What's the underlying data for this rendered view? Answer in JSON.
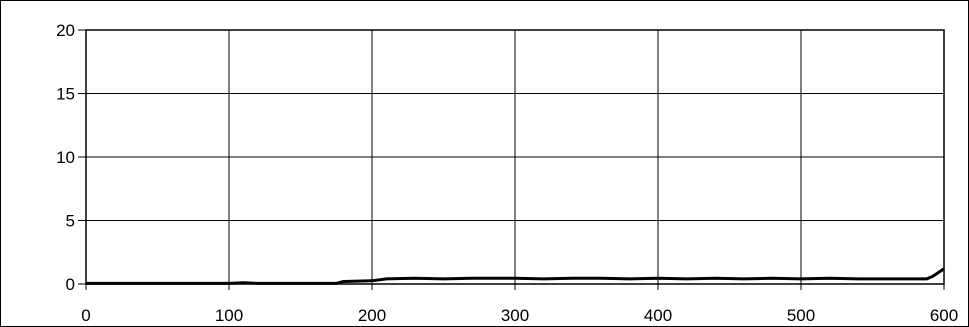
{
  "chart_data": {
    "type": "line",
    "title": "",
    "xlabel": "",
    "ylabel": "",
    "xlim": [
      0,
      600
    ],
    "ylim": [
      0,
      20
    ],
    "x_ticks": [
      0,
      100,
      200,
      300,
      400,
      500,
      600
    ],
    "y_ticks": [
      0,
      5,
      10,
      15,
      20
    ],
    "grid": true,
    "legend": "none",
    "colors": {
      "line": "#000000",
      "grid": "#000000",
      "background": "#ffffff"
    },
    "series": [
      {
        "x": [
          0,
          20,
          40,
          60,
          80,
          100,
          110,
          120,
          140,
          160,
          175,
          180,
          200,
          210,
          230,
          250,
          270,
          300,
          320,
          340,
          360,
          380,
          400,
          420,
          440,
          460,
          480,
          500,
          520,
          540,
          560,
          580,
          588,
          592,
          596,
          600
        ],
        "values": [
          0.05,
          0.05,
          0.05,
          0.05,
          0.05,
          0.05,
          0.1,
          0.05,
          0.05,
          0.05,
          0.05,
          0.2,
          0.25,
          0.4,
          0.45,
          0.4,
          0.45,
          0.45,
          0.4,
          0.45,
          0.45,
          0.4,
          0.45,
          0.4,
          0.45,
          0.4,
          0.45,
          0.4,
          0.45,
          0.4,
          0.4,
          0.4,
          0.4,
          0.6,
          0.9,
          1.2
        ]
      }
    ]
  }
}
